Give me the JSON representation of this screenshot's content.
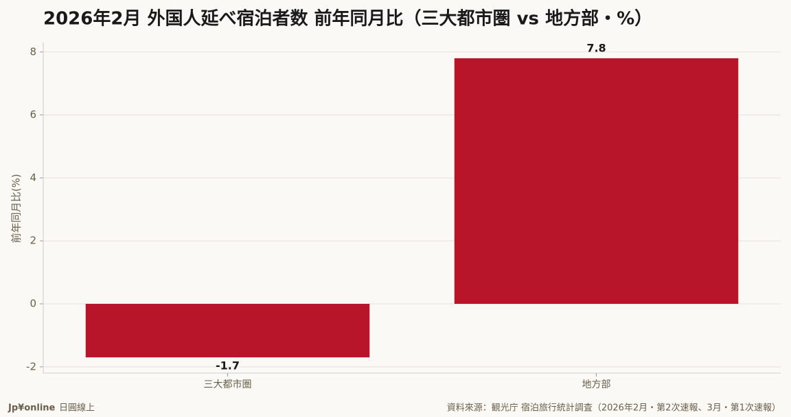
{
  "chart_data": {
    "type": "bar",
    "title": "2026年2月 外国人延べ宿泊者数 前年同月比（三大都市圏 vs 地方部・%）",
    "y_label": "前年同月比(%)",
    "categories": [
      "三大都市圏",
      "地方部"
    ],
    "values": [
      -1.7,
      7.8
    ],
    "color": "#b8152b",
    "ylim": [
      -2.2,
      8.3
    ],
    "yticks": [
      -2,
      0,
      2,
      4,
      6,
      8
    ],
    "grid": true
  },
  "footer": {
    "brand": "Jp¥online",
    "brand_sub": "日圓線上",
    "source": "資料來源：観光庁 宿泊旅行統計調査（2026年2月・第2次速報、3月・第1次速報）"
  }
}
